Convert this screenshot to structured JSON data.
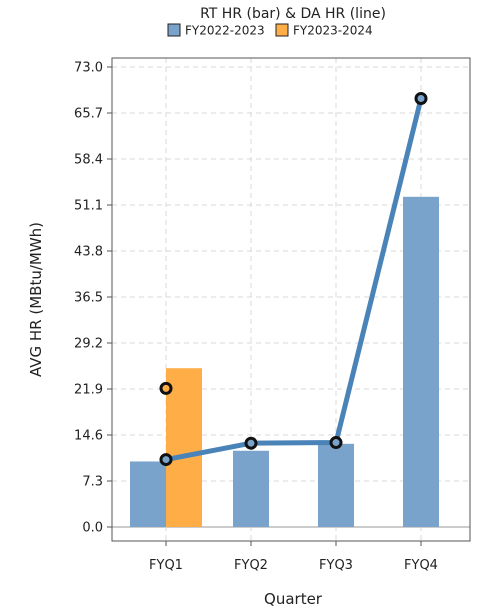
{
  "chart_data": {
    "type": "bar",
    "categories": [
      "FYQ1",
      "FYQ2",
      "FYQ3",
      "FYQ4"
    ],
    "legend": {
      "title": "RT HR (bar) & DA HR (line)",
      "placement": "top-center"
    },
    "series": [
      {
        "name": "FY2022-2023",
        "color": "#7aa3cc",
        "line_color": "#4a83b7",
        "bar_values": [
          10.4,
          12.1,
          13.2,
          52.4
        ],
        "line_values": [
          10.7,
          13.3,
          13.4,
          68.0
        ]
      },
      {
        "name": "FY2023-2024",
        "color": "#ffad47",
        "bar_values": [
          25.2,
          null,
          null,
          null
        ],
        "line_values": [
          22.0,
          null,
          null,
          null
        ]
      }
    ],
    "xlabel": "Quarter",
    "ylabel": "AVG HR (MBtu/MWh)",
    "ylim": [
      0,
      73
    ],
    "yticks": [
      "0.0",
      "7.3",
      "14.6",
      "21.9",
      "29.2",
      "36.5",
      "43.8",
      "51.1",
      "58.4",
      "65.7",
      "73.0"
    ],
    "grid": true
  }
}
